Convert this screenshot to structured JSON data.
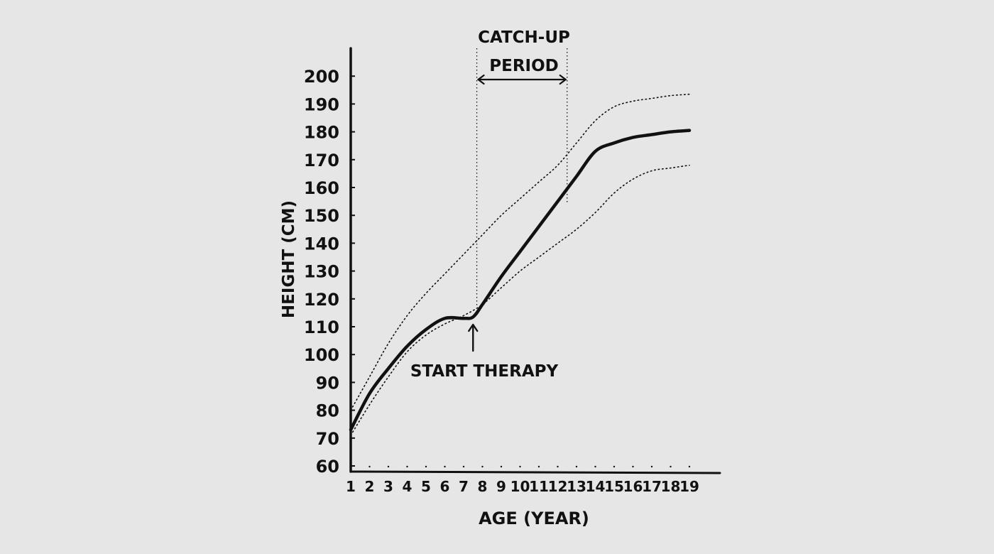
{
  "chart_data": {
    "type": "line",
    "title": "",
    "xlabel": "AGE (YEAR)",
    "ylabel": "HEIGHT (CM)",
    "x_ticks": [
      1,
      2,
      3,
      4,
      5,
      6,
      7,
      8,
      9,
      10,
      11,
      12,
      13,
      14,
      15,
      16,
      17,
      18,
      19
    ],
    "y_ticks": [
      60,
      70,
      80,
      90,
      100,
      110,
      120,
      130,
      140,
      150,
      160,
      170,
      180,
      190,
      200
    ],
    "xlim": [
      1,
      20
    ],
    "ylim": [
      60,
      212
    ],
    "grid": false,
    "series": [
      {
        "style": "solid",
        "x": [
          1,
          2,
          3,
          4,
          5,
          6,
          7,
          7.5,
          8,
          9,
          10,
          11,
          12,
          13,
          14,
          15,
          16,
          17,
          18,
          19
        ],
        "y": [
          73,
          86,
          95,
          103,
          109,
          113,
          113,
          113.5,
          118,
          128,
          137,
          146,
          155,
          164,
          173,
          176,
          178,
          179,
          180,
          180.5
        ]
      },
      {
        "style": "dotted",
        "x": [
          1,
          2,
          3,
          4,
          5,
          6,
          7,
          8,
          9,
          10,
          11,
          12,
          13,
          14,
          15,
          16,
          17,
          18,
          19
        ],
        "y": [
          80,
          92,
          104,
          114,
          122,
          129,
          136,
          143,
          150,
          156,
          162,
          168,
          176,
          184,
          189,
          191,
          192,
          193,
          193.5
        ]
      },
      {
        "style": "dotted",
        "x": [
          1,
          2,
          3,
          4,
          5,
          6,
          7,
          8,
          9,
          10,
          11,
          12,
          13,
          14,
          15,
          16,
          17,
          18,
          19
        ],
        "y": [
          71,
          82,
          92,
          101,
          107,
          111,
          114,
          118,
          124,
          130,
          135,
          140,
          145,
          151,
          158,
          163,
          166,
          167,
          168
        ]
      }
    ],
    "annotations": {
      "catch_up_line1": "CATCH-UP",
      "catch_up_line2": "PERIOD",
      "catch_up_range": [
        7.7,
        12.5
      ],
      "start_therapy": "START THERAPY",
      "start_therapy_x": 7.5
    }
  }
}
